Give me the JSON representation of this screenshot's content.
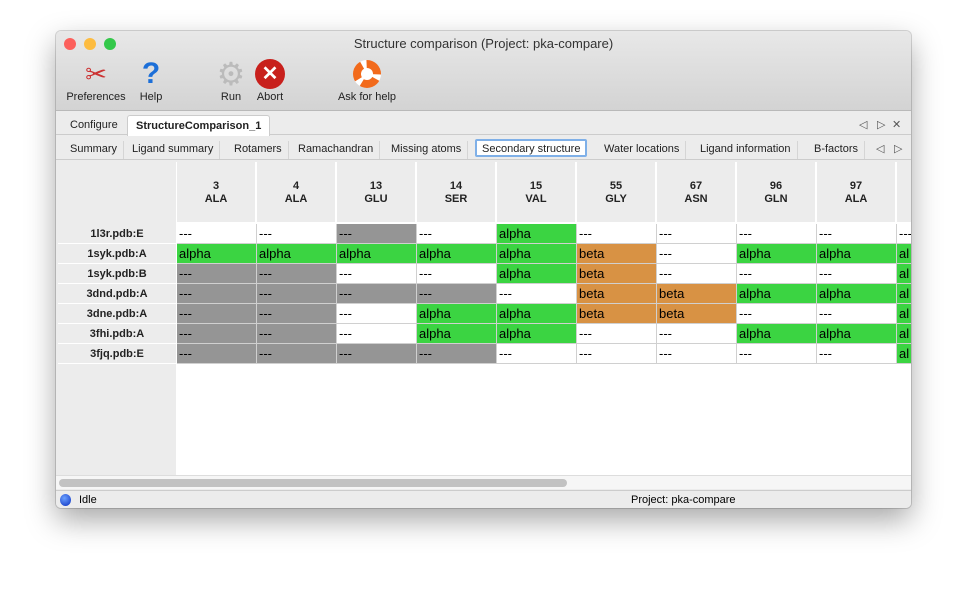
{
  "window": {
    "title": "Structure comparison (Project: pka-compare)"
  },
  "toolbar": [
    {
      "label": "Preferences",
      "icon": "tools-icon"
    },
    {
      "label": "Help",
      "icon": "question-icon"
    },
    {
      "label": "Run",
      "icon": "gear-icon"
    },
    {
      "label": "Abort",
      "icon": "abort-icon"
    },
    {
      "label": "Ask for help",
      "icon": "lifebuoy-icon"
    }
  ],
  "tabs": [
    {
      "label": "Configure"
    },
    {
      "label": "StructureComparison_1",
      "active": true
    }
  ],
  "subtabs": [
    {
      "label": "Summary"
    },
    {
      "label": "Ligand summary"
    },
    {
      "label": "Rotamers"
    },
    {
      "label": "Ramachandran"
    },
    {
      "label": "Missing atoms"
    },
    {
      "label": "Secondary structure",
      "active": true
    },
    {
      "label": "Water locations"
    },
    {
      "label": "Ligand information"
    },
    {
      "label": "B-factors"
    }
  ],
  "colors": {
    "alpha": "#3bd442",
    "beta": "#d89244",
    "missing": "#959595",
    "none": "#ffffff"
  },
  "table": {
    "columns": [
      {
        "num": "3",
        "res": "ALA"
      },
      {
        "num": "4",
        "res": "ALA"
      },
      {
        "num": "13",
        "res": "GLU"
      },
      {
        "num": "14",
        "res": "SER"
      },
      {
        "num": "15",
        "res": "VAL"
      },
      {
        "num": "55",
        "res": "GLY"
      },
      {
        "num": "67",
        "res": "ASN"
      },
      {
        "num": "96",
        "res": "GLN"
      },
      {
        "num": "97",
        "res": "ALA"
      },
      {
        "num": "",
        "res": ""
      }
    ],
    "rows": [
      {
        "label": "1l3r.pdb:E",
        "cells": [
          [
            "---",
            "none"
          ],
          [
            "---",
            "none"
          ],
          [
            "---",
            "missing"
          ],
          [
            "---",
            "none"
          ],
          [
            "alpha",
            "alpha"
          ],
          [
            "---",
            "none"
          ],
          [
            "---",
            "none"
          ],
          [
            "---",
            "none"
          ],
          [
            "---",
            "none"
          ],
          [
            "---",
            "none"
          ]
        ]
      },
      {
        "label": "1syk.pdb:A",
        "cells": [
          [
            "alpha",
            "alpha"
          ],
          [
            "alpha",
            "alpha"
          ],
          [
            "alpha",
            "alpha"
          ],
          [
            "alpha",
            "alpha"
          ],
          [
            "alpha",
            "alpha"
          ],
          [
            "beta",
            "beta"
          ],
          [
            "---",
            "none"
          ],
          [
            "alpha",
            "alpha"
          ],
          [
            "alpha",
            "alpha"
          ],
          [
            "al",
            "alpha"
          ]
        ]
      },
      {
        "label": "1syk.pdb:B",
        "cells": [
          [
            "---",
            "missing"
          ],
          [
            "---",
            "missing"
          ],
          [
            "---",
            "none"
          ],
          [
            "---",
            "none"
          ],
          [
            "alpha",
            "alpha"
          ],
          [
            "beta",
            "beta"
          ],
          [
            "---",
            "none"
          ],
          [
            "---",
            "none"
          ],
          [
            "---",
            "none"
          ],
          [
            "al",
            "alpha"
          ]
        ]
      },
      {
        "label": "3dnd.pdb:A",
        "cells": [
          [
            "---",
            "missing"
          ],
          [
            "---",
            "missing"
          ],
          [
            "---",
            "missing"
          ],
          [
            "---",
            "missing"
          ],
          [
            "---",
            "none"
          ],
          [
            "beta",
            "beta"
          ],
          [
            "beta",
            "beta"
          ],
          [
            "alpha",
            "alpha"
          ],
          [
            "alpha",
            "alpha"
          ],
          [
            "al",
            "alpha"
          ]
        ]
      },
      {
        "label": "3dne.pdb:A",
        "cells": [
          [
            "---",
            "missing"
          ],
          [
            "---",
            "missing"
          ],
          [
            "---",
            "none"
          ],
          [
            "alpha",
            "alpha"
          ],
          [
            "alpha",
            "alpha"
          ],
          [
            "beta",
            "beta"
          ],
          [
            "beta",
            "beta"
          ],
          [
            "---",
            "none"
          ],
          [
            "---",
            "none"
          ],
          [
            "al",
            "alpha"
          ]
        ]
      },
      {
        "label": "3fhi.pdb:A",
        "cells": [
          [
            "---",
            "missing"
          ],
          [
            "---",
            "missing"
          ],
          [
            "---",
            "none"
          ],
          [
            "alpha",
            "alpha"
          ],
          [
            "alpha",
            "alpha"
          ],
          [
            "---",
            "none"
          ],
          [
            "---",
            "none"
          ],
          [
            "alpha",
            "alpha"
          ],
          [
            "alpha",
            "alpha"
          ],
          [
            "al",
            "alpha"
          ]
        ]
      },
      {
        "label": "3fjq.pdb:E",
        "cells": [
          [
            "---",
            "missing"
          ],
          [
            "---",
            "missing"
          ],
          [
            "---",
            "missing"
          ],
          [
            "---",
            "missing"
          ],
          [
            "---",
            "none"
          ],
          [
            "---",
            "none"
          ],
          [
            "---",
            "none"
          ],
          [
            "---",
            "none"
          ],
          [
            "---",
            "none"
          ],
          [
            "al",
            "alpha"
          ]
        ]
      }
    ]
  },
  "status": {
    "state": "Idle",
    "project": "Project: pka-compare"
  }
}
